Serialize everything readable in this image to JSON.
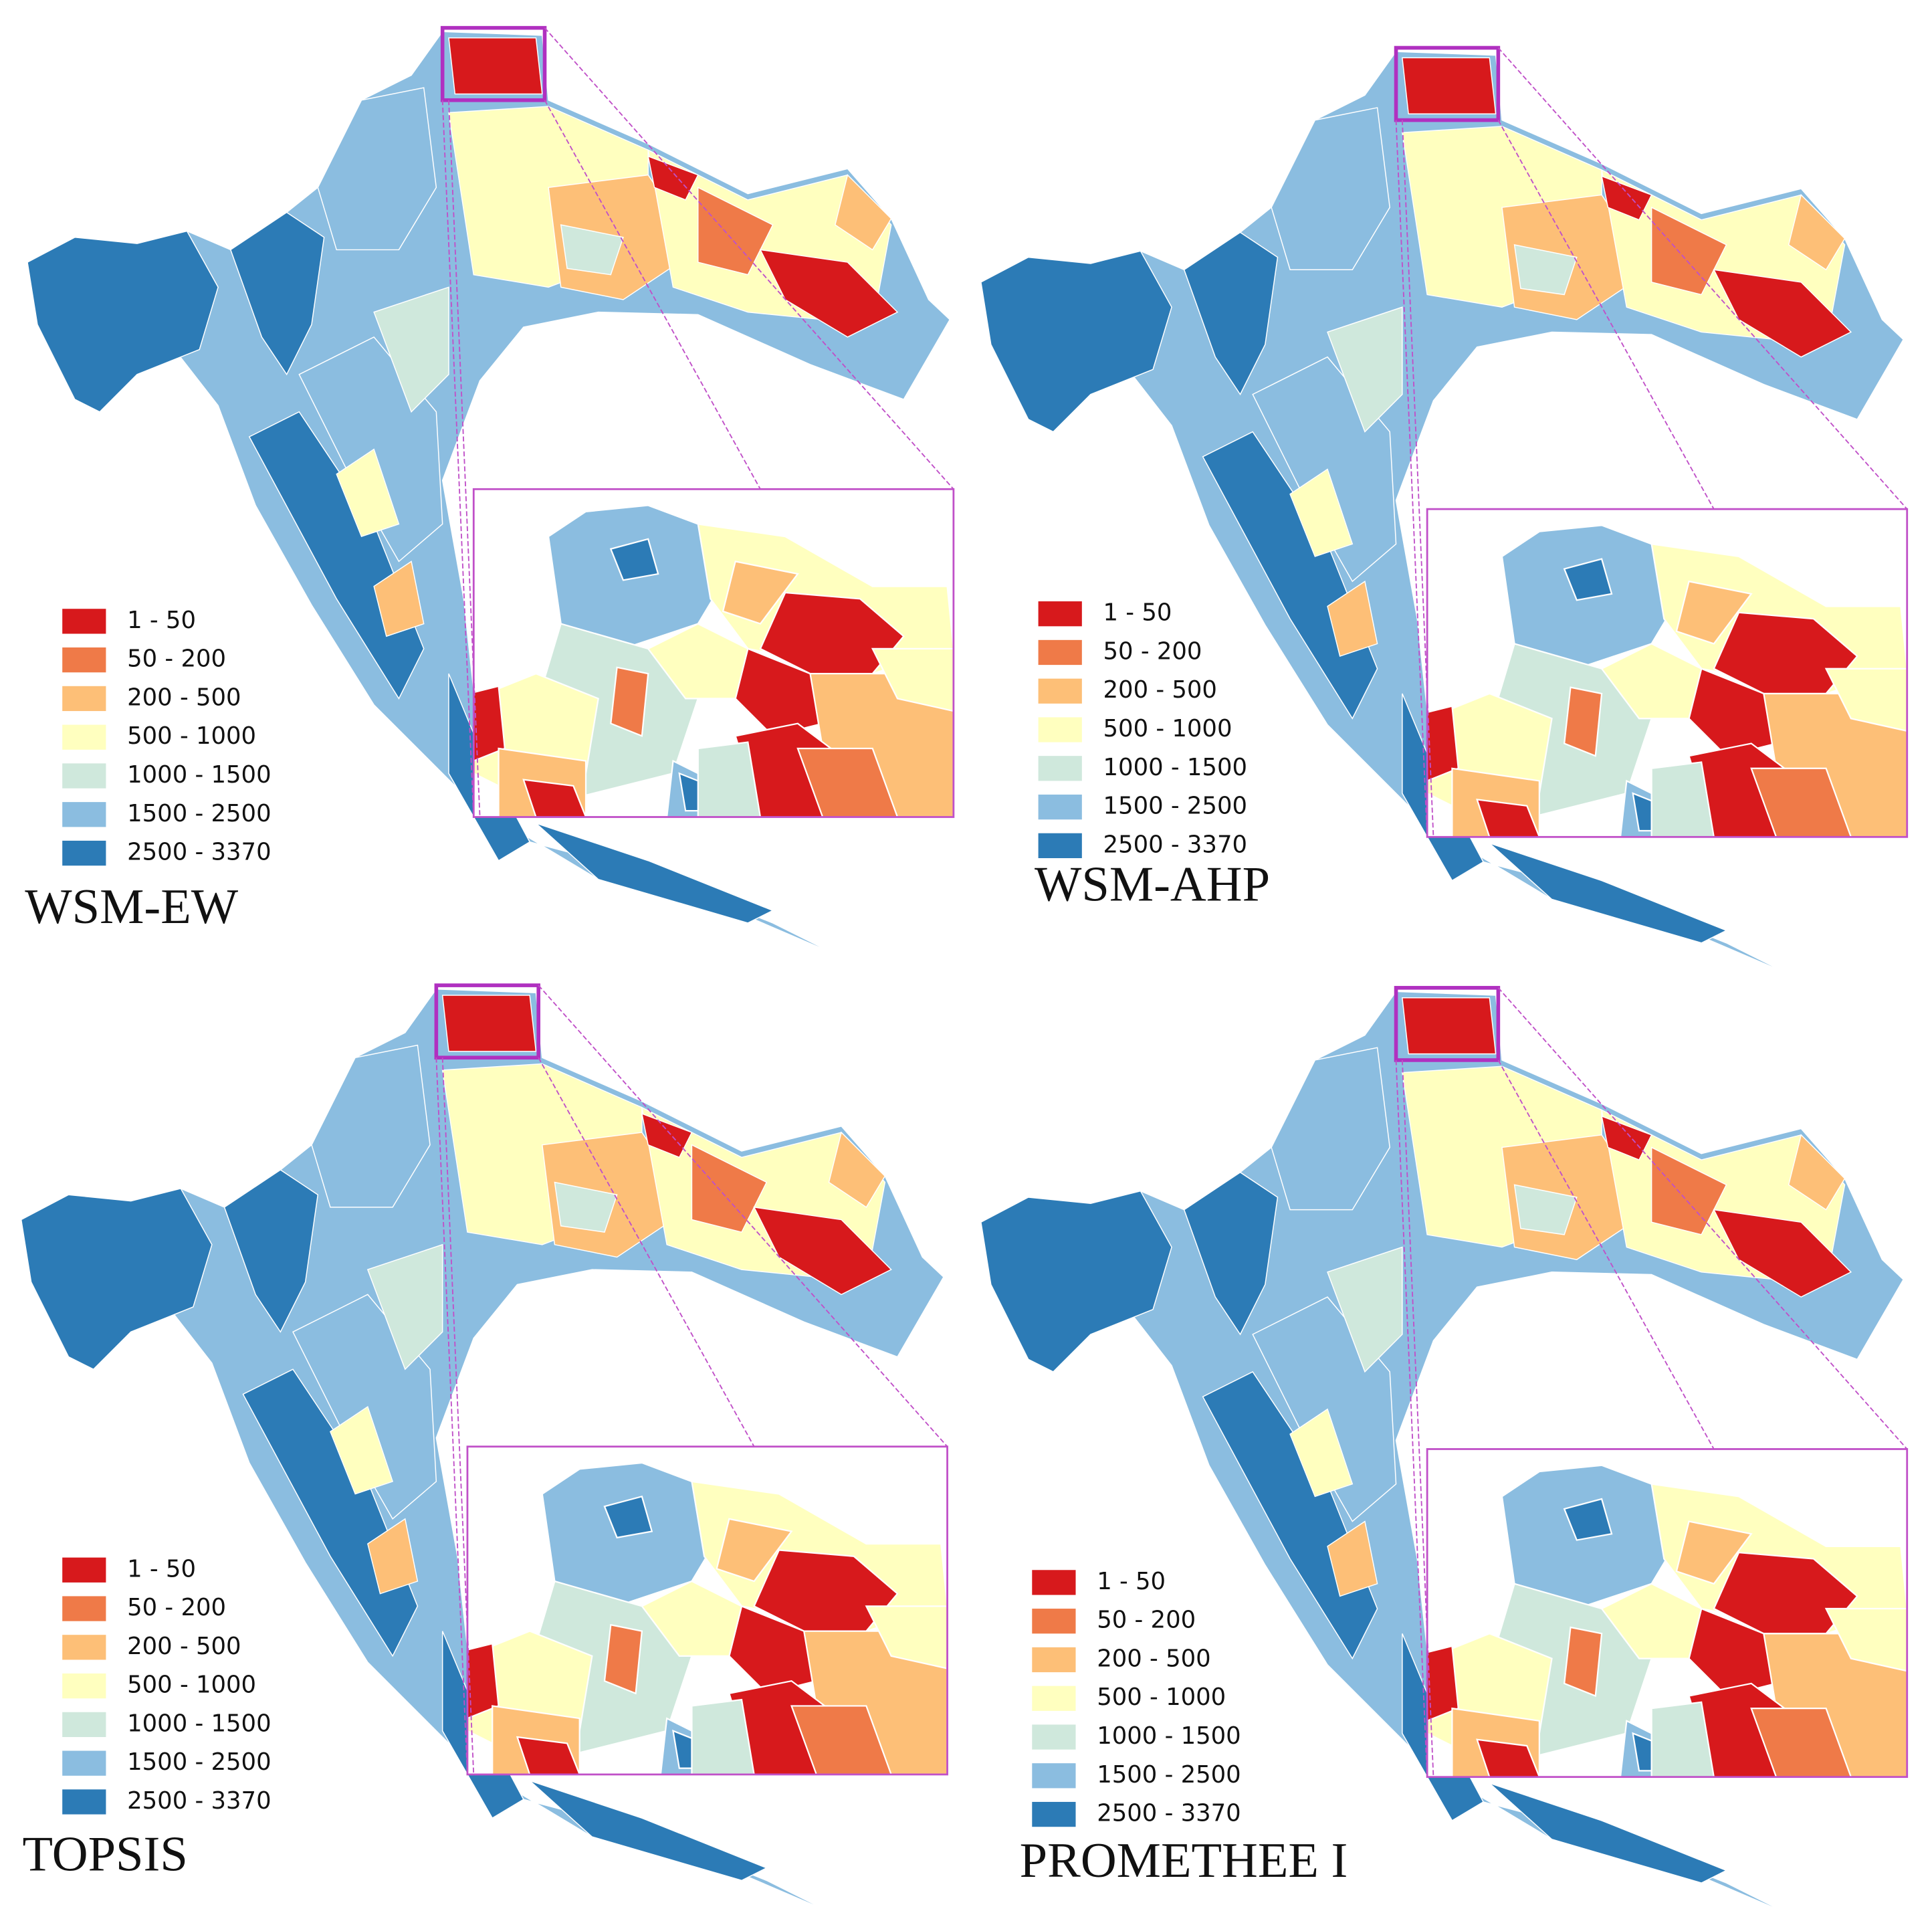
{
  "panels": [
    {
      "title": "WSM-EW",
      "legend": [
        {
          "label": "1 - 50",
          "color": "#d7191c"
        },
        {
          "label": "50 - 200",
          "color": "#ef7a48"
        },
        {
          "label": "200 - 500",
          "color": "#fdbf77"
        },
        {
          "label": "500 - 1000",
          "color": "#ffffbf"
        },
        {
          "label": "1000 - 1500",
          "color": "#cfe8dc"
        },
        {
          "label": "1500 - 2500",
          "color": "#8bbde0"
        },
        {
          "label": "2500 - 3370",
          "color": "#2c7bb6"
        }
      ]
    },
    {
      "title": "WSM-AHP",
      "legend": [
        {
          "label": "1 - 50",
          "color": "#d7191c"
        },
        {
          "label": "50 - 200",
          "color": "#ef7a48"
        },
        {
          "label": "200 - 500",
          "color": "#fdbf77"
        },
        {
          "label": "500 - 1000",
          "color": "#ffffbf"
        },
        {
          "label": "1000 - 1500",
          "color": "#cfe8dc"
        },
        {
          "label": "1500 - 2500",
          "color": "#8bbde0"
        },
        {
          "label": "2500 - 3370",
          "color": "#2c7bb6"
        }
      ]
    },
    {
      "title": "TOPSIS",
      "legend": [
        {
          "label": "1 - 50",
          "color": "#d7191c"
        },
        {
          "label": "50 - 200",
          "color": "#ef7a48"
        },
        {
          "label": "200 - 500",
          "color": "#fdbf77"
        },
        {
          "label": "500 - 1000",
          "color": "#ffffbf"
        },
        {
          "label": "1000 - 1500",
          "color": "#cfe8dc"
        },
        {
          "label": "1500 - 2500",
          "color": "#8bbde0"
        },
        {
          "label": "2500 - 3370",
          "color": "#2c7bb6"
        }
      ]
    },
    {
      "title": "PROMETHEE I",
      "legend": [
        {
          "label": "1 - 50",
          "color": "#d7191c"
        },
        {
          "label": "50 - 200",
          "color": "#ef7a48"
        },
        {
          "label": "200 - 500",
          "color": "#fdbf77"
        },
        {
          "label": "500 - 1000",
          "color": "#ffffbf"
        },
        {
          "label": "1000 - 1500",
          "color": "#cfe8dc"
        },
        {
          "label": "1500 - 2500",
          "color": "#8bbde0"
        },
        {
          "label": "2500 - 3370",
          "color": "#2c7bb6"
        }
      ]
    }
  ]
}
